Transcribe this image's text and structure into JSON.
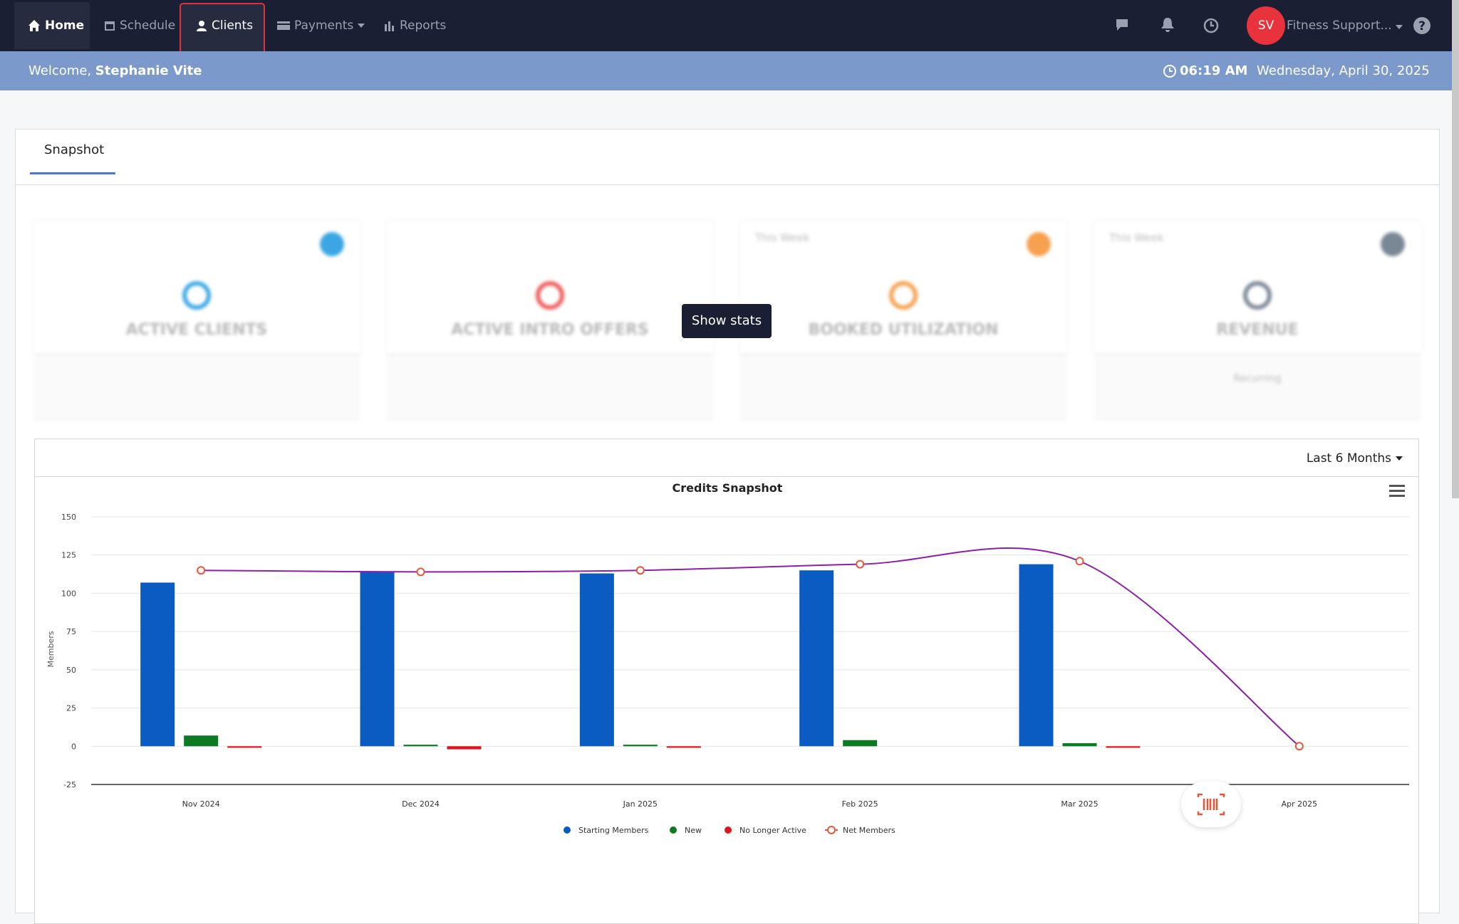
{
  "nav": {
    "items": [
      "Home",
      "Schedule",
      "Clients",
      "Payments",
      "Reports"
    ],
    "user_initials": "SV",
    "user_name": "Fitness Support..."
  },
  "header": {
    "welcome": "Welcome,",
    "user": "Stephanie Vite",
    "time": "06:19 AM",
    "date": "Wednesday, April 30, 2025"
  },
  "tabs": [
    "Snapshot"
  ],
  "cards": [
    {
      "title": "ACTIVE CLIENTS"
    },
    {
      "title": "ACTIVE INTRO OFFERS"
    },
    {
      "period": "This Week",
      "title": "BOOKED UTILIZATION"
    },
    {
      "period": "This Week",
      "title": "REVENUE",
      "footer": "Recurring"
    }
  ],
  "show_stats": "Show stats",
  "range_select": "Last 6 Months",
  "chart_data": {
    "type": "bar",
    "title": "Credits Snapshot",
    "y_label": "Members",
    "categories": [
      "Nov 2024",
      "Dec 2024",
      "Jan 2025",
      "Feb 2025",
      "Mar 2025",
      "Apr 2025"
    ],
    "series": [
      {
        "name": "Starting Members",
        "color": "#0a5cc2",
        "values": [
          107,
          114,
          113,
          115,
          119,
          null
        ]
      },
      {
        "name": "New",
        "color": "#0b7a22",
        "values": [
          7,
          1,
          1,
          4,
          2,
          null
        ]
      },
      {
        "name": "No Longer Active",
        "color": "#e0141e",
        "values": [
          -1,
          -2,
          -1,
          0,
          -1,
          null
        ]
      },
      {
        "name": "Net Members",
        "type": "line",
        "color": "#8e1ea8",
        "marker_color": "#e8563a",
        "values": [
          115,
          114,
          115,
          119,
          121,
          0
        ]
      }
    ],
    "ylim": [
      -25,
      150
    ],
    "yticks": [
      -25,
      0,
      25,
      50,
      75,
      100,
      125,
      150
    ],
    "grid": true
  }
}
